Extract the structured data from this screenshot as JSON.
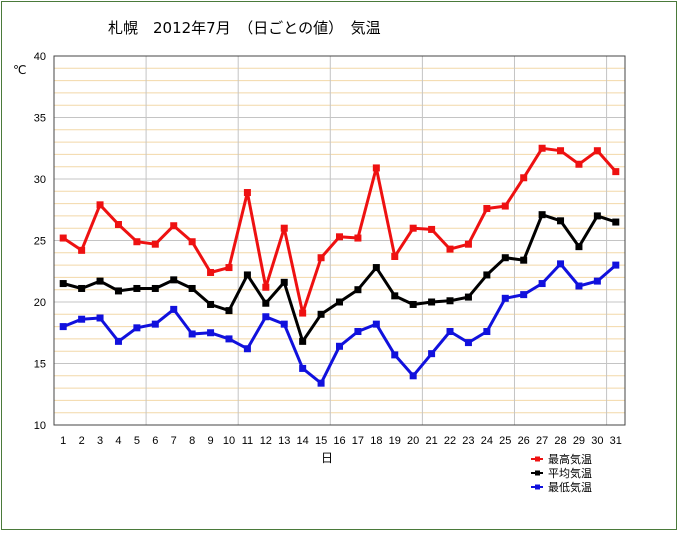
{
  "chart_data": {
    "type": "line",
    "title": "札幌　2012年7月　（日ごとの値）　気温",
    "ylabel": "℃",
    "xlabel": "日",
    "ylim": [
      10,
      40
    ],
    "yticks": [
      10,
      15,
      20,
      25,
      30,
      35,
      40
    ],
    "categories": [
      "1",
      "2",
      "3",
      "4",
      "5",
      "6",
      "7",
      "8",
      "9",
      "10",
      "11",
      "12",
      "13",
      "14",
      "15",
      "16",
      "17",
      "18",
      "19",
      "20",
      "21",
      "22",
      "23",
      "24",
      "25",
      "26",
      "27",
      "28",
      "29",
      "30",
      "31"
    ],
    "grid": true,
    "legend_position": "bottom-right",
    "series": [
      {
        "name": "最高気温",
        "color": "#ee1111",
        "values": [
          25.2,
          24.2,
          27.9,
          26.3,
          24.9,
          24.7,
          26.2,
          24.9,
          22.4,
          22.8,
          28.9,
          21.2,
          26.0,
          19.1,
          23.6,
          25.3,
          25.2,
          30.9,
          23.7,
          26.0,
          25.9,
          24.3,
          24.7,
          27.6,
          27.8,
          30.1,
          32.5,
          32.3,
          31.2,
          32.3,
          30.6
        ]
      },
      {
        "name": "平均気温",
        "color": "#000000",
        "values": [
          21.5,
          21.1,
          21.7,
          20.9,
          21.1,
          21.1,
          21.8,
          21.1,
          19.8,
          19.3,
          22.2,
          19.9,
          21.6,
          16.8,
          19.0,
          20.0,
          21.0,
          22.8,
          20.5,
          19.8,
          20.0,
          20.1,
          20.4,
          22.2,
          23.6,
          23.4,
          27.1,
          26.6,
          24.5,
          27.0,
          26.5
        ]
      },
      {
        "name": "最低気温",
        "color": "#1111dd",
        "values": [
          18.0,
          18.6,
          18.7,
          16.8,
          17.9,
          18.2,
          19.4,
          17.4,
          17.5,
          17.0,
          16.2,
          18.8,
          18.2,
          14.6,
          13.4,
          16.4,
          17.6,
          18.2,
          15.7,
          14.0,
          15.8,
          17.6,
          16.7,
          17.6,
          20.3,
          20.6,
          21.5,
          23.1,
          21.3,
          21.7,
          23.0
        ]
      }
    ]
  }
}
